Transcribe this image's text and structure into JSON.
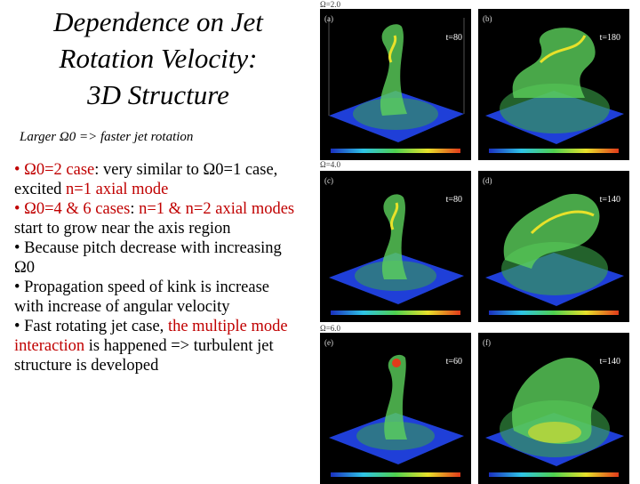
{
  "slide": {
    "title_lines": [
      "Dependence on Jet",
      "Rotation Velocity:",
      "3D Structure"
    ],
    "subtitle": "Larger Ω0 => faster jet rotation"
  },
  "bullets": [
    {
      "parts": [
        {
          "t": "• Ω0=2 case",
          "red": true
        },
        {
          "t": ": very similar to Ω0=1 case, excited ",
          "red": false
        },
        {
          "t": "n=1 axial mode",
          "red": true
        }
      ]
    },
    {
      "parts": [
        {
          "t": "• Ω0=4 & 6 cases",
          "red": true
        },
        {
          "t": ": ",
          "red": false
        },
        {
          "t": "n=1 & n=2 axial modes",
          "red": true
        },
        {
          "t": " start to grow near the axis region",
          "red": false
        }
      ]
    },
    {
      "parts": [
        {
          "t": "• Because pitch decrease with increasing Ω0",
          "red": false
        }
      ]
    },
    {
      "parts": [
        {
          "t": "• Propagation speed of kink is increase with increase of angular velocity",
          "red": false
        }
      ]
    },
    {
      "parts": [
        {
          "t": "• Fast rotating jet case, ",
          "red": false
        },
        {
          "t": "the multiple mode interaction",
          "red": true
        },
        {
          "t": " is happened => turbulent jet structure is developed",
          "red": false
        }
      ]
    }
  ],
  "figure": {
    "rows": [
      {
        "omega_label": "Ω=2.0",
        "panels": [
          {
            "tag": "(a)",
            "time": "t=80"
          },
          {
            "tag": "(b)",
            "time": "t=180"
          }
        ]
      },
      {
        "omega_label": "Ω=4.0",
        "panels": [
          {
            "tag": "(c)",
            "time": "t=80"
          },
          {
            "tag": "(d)",
            "time": "t=140"
          }
        ]
      },
      {
        "omega_label": "Ω=6.0",
        "panels": [
          {
            "tag": "(e)",
            "time": "t=60"
          },
          {
            "tag": "(f)",
            "time": "t=140"
          }
        ]
      }
    ],
    "colors": {
      "panel_bg": "#000000",
      "plane": "#1f3fd8",
      "jet": "#5bd15b",
      "hot": "#e8e12a"
    }
  }
}
